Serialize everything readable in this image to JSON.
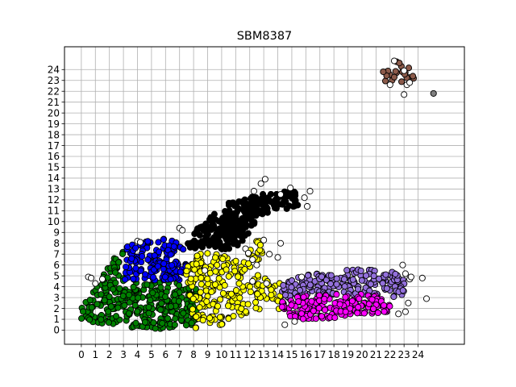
{
  "chart_data": {
    "type": "scatter",
    "title": "SBM8387",
    "xlabel": "",
    "ylabel": "",
    "xlim": [
      -1.2,
      27.3
    ],
    "ylim": [
      -1.3,
      26.1
    ],
    "xticks": [
      0,
      1,
      2,
      3,
      4,
      5,
      6,
      7,
      8,
      9,
      10,
      11,
      12,
      13,
      14,
      15,
      16,
      17,
      18,
      19,
      20,
      21,
      22,
      23,
      24
    ],
    "yticks": [
      0,
      1,
      2,
      3,
      4,
      5,
      6,
      7,
      8,
      9,
      10,
      11,
      12,
      13,
      14,
      15,
      16,
      17,
      18,
      19,
      20,
      21,
      22,
      23,
      24
    ],
    "grid": true,
    "legend": "none",
    "clusters": [
      {
        "color": "#008000",
        "shape": "poly",
        "poly": [
          [
            -0.1,
            1.8
          ],
          [
            0.3,
            3.0
          ],
          [
            1.0,
            4.0
          ],
          [
            1.8,
            5.5
          ],
          [
            2.5,
            7.0
          ],
          [
            3.2,
            7.3
          ],
          [
            3.0,
            4.5
          ],
          [
            7.5,
            4.5
          ],
          [
            8.5,
            3.6
          ],
          [
            8.5,
            0.5
          ],
          [
            6.0,
            0.1
          ],
          [
            3.0,
            0.2
          ],
          [
            1.0,
            0.6
          ],
          [
            0.0,
            1.0
          ]
        ],
        "count": 340
      },
      {
        "color": "#0000ff",
        "shape": "poly",
        "poly": [
          [
            3.1,
            7.7
          ],
          [
            4.5,
            8.2
          ],
          [
            6.0,
            8.5
          ],
          [
            7.3,
            7.8
          ],
          [
            7.5,
            6.0
          ],
          [
            7.3,
            4.6
          ],
          [
            3.1,
            4.6
          ]
        ],
        "count": 150
      },
      {
        "color": "#ffff00",
        "shape": "poly",
        "poly": [
          [
            7.4,
            6.0
          ],
          [
            8.5,
            7.3
          ],
          [
            10.5,
            7.0
          ],
          [
            11.5,
            6.5
          ],
          [
            12.3,
            8.3
          ],
          [
            12.8,
            8.6
          ],
          [
            13.0,
            5.0
          ],
          [
            14.3,
            4.3
          ],
          [
            14.5,
            2.0
          ],
          [
            12.5,
            1.6
          ],
          [
            10.5,
            0.7
          ],
          [
            9.0,
            0.2
          ],
          [
            8.0,
            0.2
          ],
          [
            7.8,
            2.3
          ],
          [
            7.5,
            4.6
          ]
        ],
        "count": 220
      },
      {
        "color": "#000000",
        "shape": "poly",
        "poly": [
          [
            7.2,
            7.5
          ],
          [
            7.7,
            8.8
          ],
          [
            9.3,
            10.6
          ],
          [
            10.6,
            11.8
          ],
          [
            12.2,
            12.3
          ],
          [
            14.0,
            12.9
          ],
          [
            15.4,
            12.8
          ],
          [
            15.6,
            11.3
          ],
          [
            13.3,
            10.8
          ],
          [
            12.5,
            10.0
          ],
          [
            12.0,
            9.0
          ],
          [
            11.5,
            8.0
          ],
          [
            10.5,
            7.4
          ],
          [
            9.0,
            7.3
          ]
        ],
        "count": 260
      },
      {
        "color": "#9370db",
        "shape": "poly",
        "poly": [
          [
            14.3,
            4.1
          ],
          [
            15.0,
            4.8
          ],
          [
            17.0,
            5.3
          ],
          [
            19.3,
            5.6
          ],
          [
            21.2,
            5.5
          ],
          [
            22.2,
            5.4
          ],
          [
            23.0,
            4.6
          ],
          [
            23.2,
            3.5
          ],
          [
            22.5,
            3.0
          ],
          [
            19.0,
            3.2
          ],
          [
            15.5,
            2.8
          ],
          [
            14.3,
            3.0
          ]
        ],
        "count": 200
      },
      {
        "color": "#ff00ff",
        "shape": "poly",
        "poly": [
          [
            14.3,
            2.8
          ],
          [
            15.0,
            3.1
          ],
          [
            18.0,
            3.3
          ],
          [
            21.2,
            3.3
          ],
          [
            22.0,
            2.5
          ],
          [
            22.0,
            1.5
          ],
          [
            20.5,
            1.4
          ],
          [
            17.0,
            1.0
          ],
          [
            15.0,
            1.0
          ],
          [
            14.3,
            1.8
          ]
        ],
        "count": 170
      },
      {
        "color": "#8b5a4a",
        "shape": "poly",
        "poly": [
          [
            21.3,
            23.3
          ],
          [
            21.8,
            24.5
          ],
          [
            22.5,
            25.0
          ],
          [
            23.5,
            24.0
          ],
          [
            23.8,
            23.0
          ],
          [
            22.5,
            22.8
          ],
          [
            21.3,
            23.0
          ]
        ],
        "count": 22
      },
      {
        "color": "#ffffff",
        "shape": "points",
        "points": [
          [
            0.5,
            4.9
          ],
          [
            0.7,
            4.8
          ],
          [
            1.0,
            4.3
          ],
          [
            1.5,
            4.7
          ],
          [
            4.0,
            8.2
          ],
          [
            4.2,
            8.1
          ],
          [
            7.0,
            9.4
          ],
          [
            7.2,
            9.2
          ],
          [
            8.8,
            5.5
          ],
          [
            11.7,
            7.5
          ],
          [
            11.9,
            7.1
          ],
          [
            12.2,
            6.5
          ],
          [
            12.5,
            6.0
          ],
          [
            12.2,
            4.5
          ],
          [
            12.3,
            12.8
          ],
          [
            12.8,
            13.5
          ],
          [
            13.1,
            13.9
          ],
          [
            13.0,
            8.3
          ],
          [
            13.4,
            7.0
          ],
          [
            13.2,
            4.3
          ],
          [
            14.2,
            8.0
          ],
          [
            14.0,
            6.7
          ],
          [
            14.5,
            0.5
          ],
          [
            15.2,
            0.8
          ],
          [
            15.9,
            12.2
          ],
          [
            16.3,
            12.8
          ],
          [
            16.1,
            11.4
          ],
          [
            14.9,
            13.1
          ],
          [
            15.7,
            4.9
          ],
          [
            22.9,
            6.0
          ],
          [
            23.1,
            5.2
          ],
          [
            22.6,
            1.5
          ],
          [
            23.1,
            1.7
          ],
          [
            23.3,
            2.5
          ],
          [
            23.4,
            4.7
          ],
          [
            23.5,
            4.9
          ],
          [
            24.3,
            4.8
          ],
          [
            24.6,
            2.9
          ],
          [
            23.0,
            21.7
          ],
          [
            23.2,
            22.6
          ],
          [
            23.0,
            23.9
          ],
          [
            23.4,
            22.8
          ],
          [
            22.3,
            24.8
          ],
          [
            22.0,
            22.6
          ],
          [
            14.2,
            12.5
          ]
        ]
      },
      {
        "color": "#808080",
        "shape": "points",
        "points": [
          [
            25.1,
            21.8
          ]
        ]
      }
    ]
  }
}
